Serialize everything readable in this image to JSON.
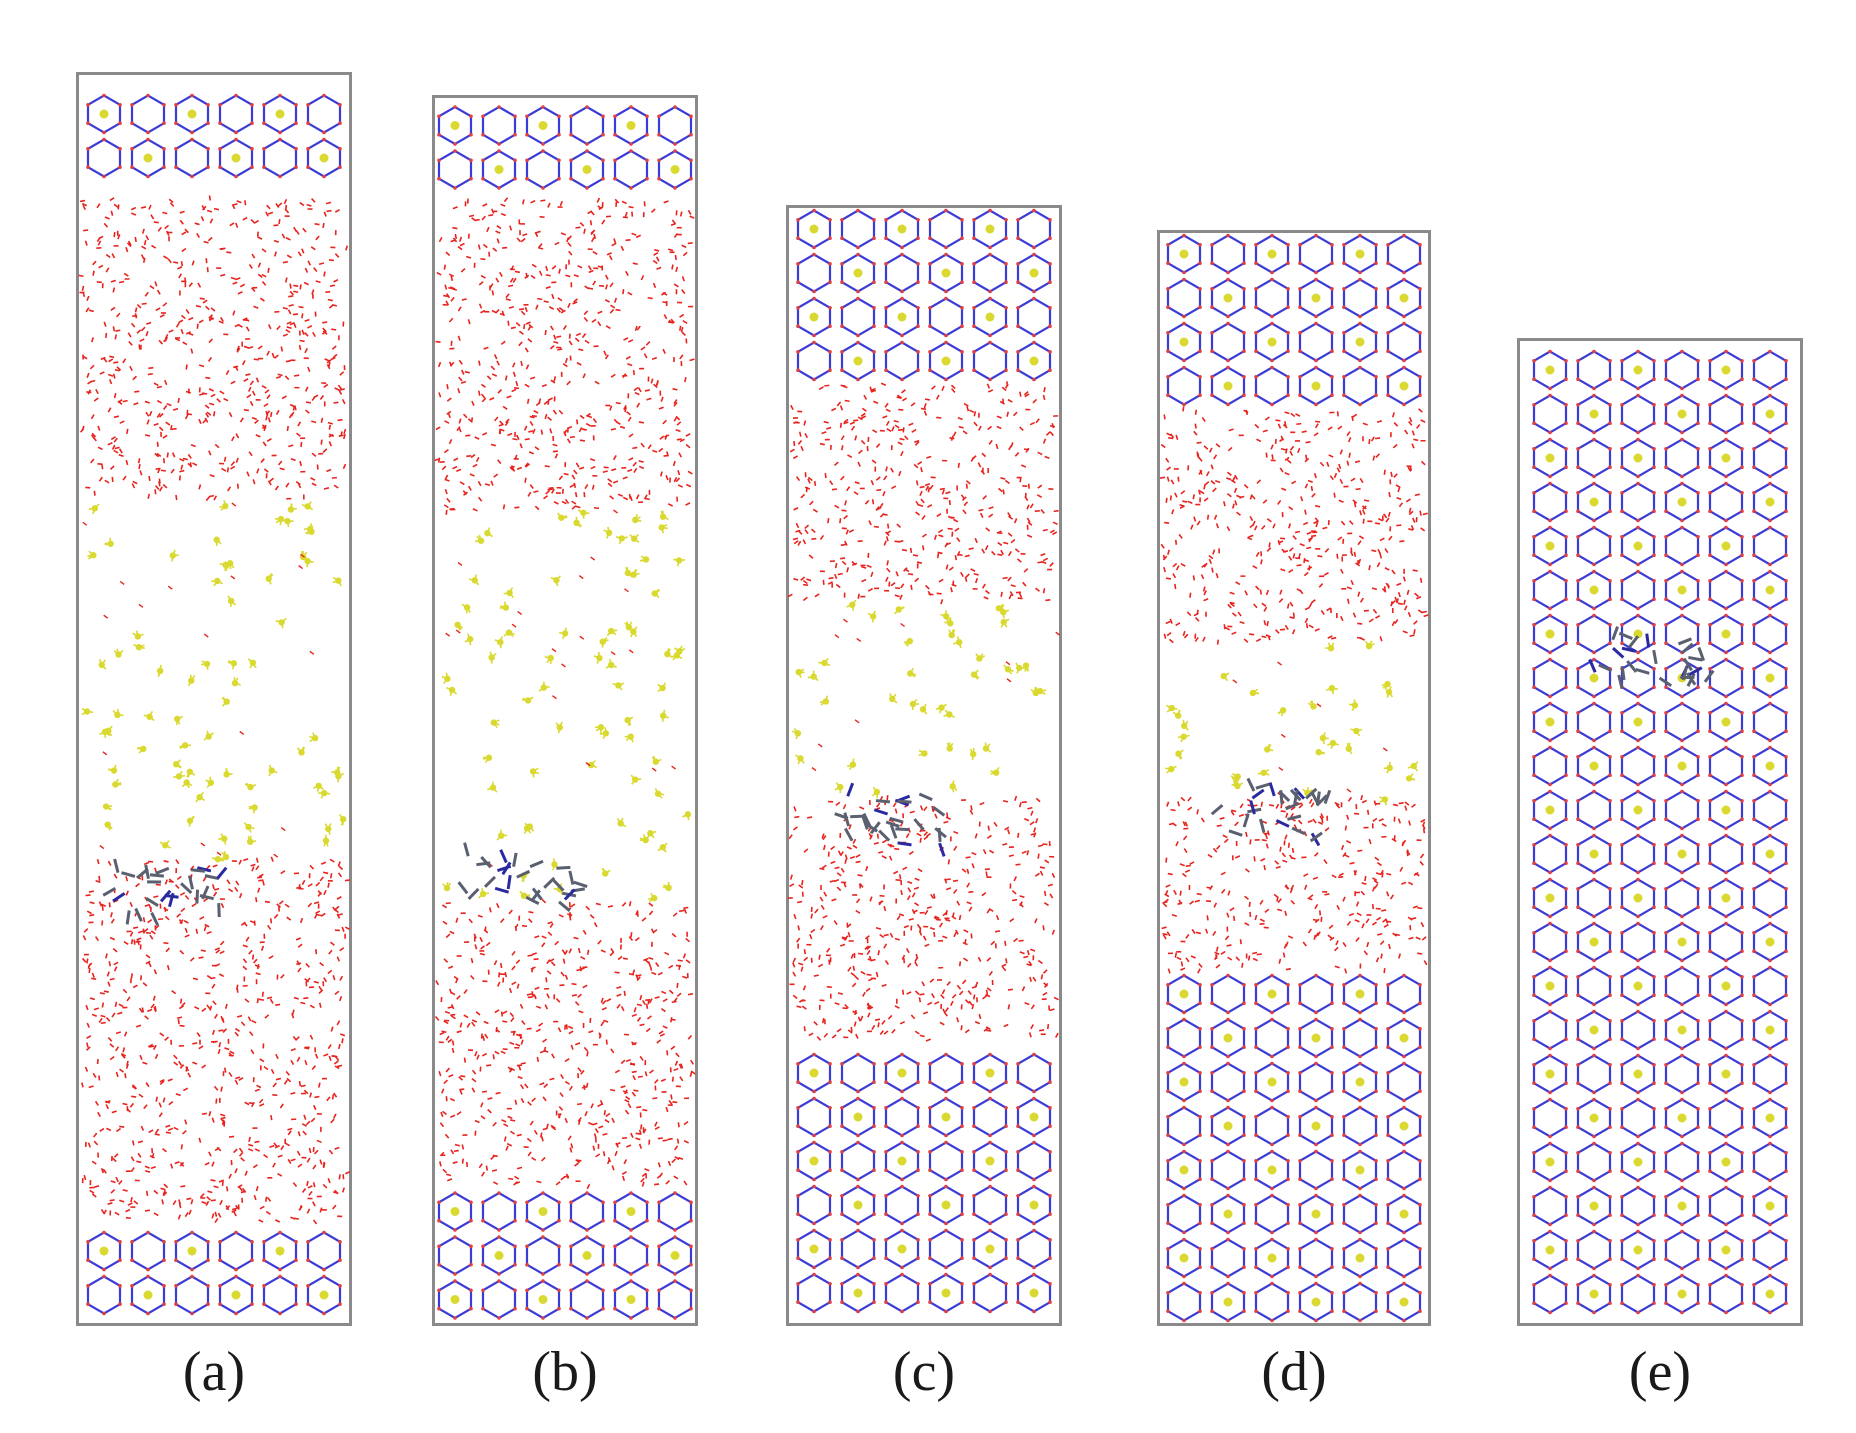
{
  "figure": {
    "background": "#ffffff",
    "colors": {
      "frame": "#8a8a8a",
      "water": "#e8231d",
      "methane": "#d9d930",
      "hydrate_bond": "#3b3bd6",
      "hydrate_node": "#e04040",
      "guest_molecule": "#5a6070",
      "guest_nitrogen": "#2a2aa0"
    },
    "panels": [
      {
        "label": "(a)"
      },
      {
        "label": "(b)"
      },
      {
        "label": "(c)"
      },
      {
        "label": "(d)"
      },
      {
        "label": "(e)"
      }
    ]
  }
}
